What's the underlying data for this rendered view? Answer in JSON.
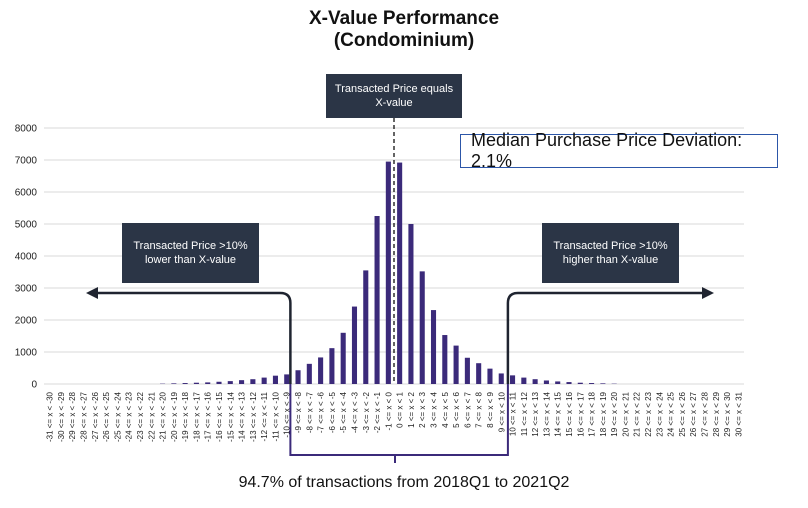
{
  "title_line1": "X-Value Performance",
  "title_line2": "(Condominium)",
  "callouts": {
    "center": "Transacted Price equals X-value",
    "left": "Transacted Price >10% lower than X-value",
    "right": "Transacted Price >10% higher than X-value"
  },
  "median_label": "Median Purchase Price Deviation: 2.1%",
  "footer": "94.7% of transactions from 2018Q1 to 2021Q2",
  "colors": {
    "bar": "#3b2a7a",
    "bracket": "#3b2a7a",
    "arrow": "#1f2430",
    "grid": "#d9d9d9",
    "callout_bg": "#2b3546",
    "median_border": "#2c56a8"
  },
  "chart_data": {
    "type": "bar",
    "categories": [
      "-31 <= x < -30",
      "-30 <= x < -29",
      "-29 <= x < -28",
      "-28 <= x < -27",
      "-27 <= x < -26",
      "-26 <= x < -25",
      "-25 <= x < -24",
      "-24 <= x < -23",
      "-23 <= x < -22",
      "-22 <= x < -21",
      "-21 <= x < -20",
      "-20 <= x < -19",
      "-19 <= x < -18",
      "-18 <= x < -17",
      "-17 <= x < -16",
      "-16 <= x < -15",
      "-15 <= x < -14",
      "-14 <= x < -13",
      "-13 <= x < -12",
      "-12 <= x < -11",
      "-11 <= x < -10",
      "-10 <= x < -9",
      "-9 <= x < -8",
      "-8 <= x < -7",
      "-7 <= x < -6",
      "-6 <= x < -5",
      "-5 <= x < -4",
      "-4 <= x < -3",
      "-3 <= x < -2",
      "-2 <= x < -1",
      "-1 <= x < 0",
      "0 <= x < 1",
      "1 <= x < 2",
      "2 <= x < 3",
      "3 <= x < 4",
      "4 <= x < 5",
      "5 <= x < 6",
      "6 <= x < 7",
      "7 <= x < 8",
      "8 <= x < 9",
      "9 <= x < 10",
      "10 <= x < 11",
      "11 <= x < 12",
      "12 <= x < 13",
      "13 <= x < 14",
      "14 <= x < 15",
      "15 <= x < 16",
      "16 <= x < 17",
      "17 <= x < 18",
      "18 <= x < 19",
      "19 <= x < 20",
      "20 <= x < 21",
      "21 <= x < 22",
      "22 <= x < 23",
      "23 <= x < 24",
      "24 <= x < 25",
      "25 <= x < 26",
      "26 <= x < 27",
      "27 <= x < 28",
      "28 <= x < 29",
      "29 <= x < 30",
      "30 <= x < 31"
    ],
    "values": [
      0,
      0,
      0,
      0,
      0,
      0,
      0,
      0,
      0,
      0,
      10,
      20,
      30,
      40,
      50,
      70,
      90,
      120,
      150,
      200,
      260,
      300,
      430,
      630,
      830,
      1120,
      1600,
      2420,
      3550,
      5250,
      6950,
      6920,
      5000,
      3520,
      2310,
      1530,
      1200,
      820,
      650,
      480,
      330,
      270,
      200,
      150,
      110,
      80,
      60,
      40,
      30,
      20,
      10,
      0,
      0,
      0,
      0,
      0,
      0,
      0,
      0,
      0,
      0,
      0
    ],
    "ylim": [
      0,
      8000
    ],
    "yticks": [
      0,
      1000,
      2000,
      3000,
      4000,
      5000,
      6000,
      7000,
      8000
    ],
    "grid": true
  }
}
